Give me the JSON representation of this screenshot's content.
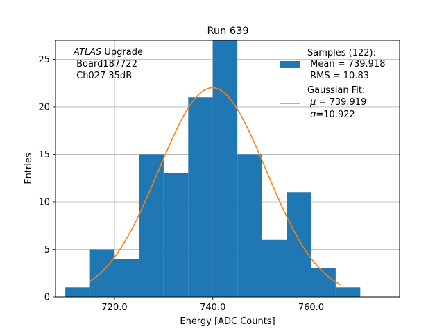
{
  "chart_data": {
    "type": "bar",
    "title": "Run 639",
    "xlabel": "Energy [ADC Counts]",
    "ylabel": "Entries",
    "xlim": [
      708,
      778
    ],
    "ylim": [
      0,
      27
    ],
    "xticks": [
      720,
      740,
      760
    ],
    "xtick_labels": [
      "720.0",
      "740.0",
      "760.0"
    ],
    "yticks": [
      0,
      5,
      10,
      15,
      20,
      25
    ],
    "grid": true,
    "bins": [
      {
        "x0": 710,
        "x1": 715,
        "count": 1
      },
      {
        "x0": 715,
        "x1": 720,
        "count": 5
      },
      {
        "x0": 720,
        "x1": 725,
        "count": 4
      },
      {
        "x0": 725,
        "x1": 730,
        "count": 15
      },
      {
        "x0": 730,
        "x1": 735,
        "count": 13
      },
      {
        "x0": 735,
        "x1": 740,
        "count": 21
      },
      {
        "x0": 740,
        "x1": 745,
        "count": 27
      },
      {
        "x0": 745,
        "x1": 750,
        "count": 15
      },
      {
        "x0": 750,
        "x1": 755,
        "count": 6
      },
      {
        "x0": 755,
        "x1": 760,
        "count": 11
      },
      {
        "x0": 760,
        "x1": 765,
        "count": 3
      },
      {
        "x0": 765,
        "x1": 770,
        "count": 1
      }
    ],
    "fit": {
      "mu": 739.919,
      "sigma": 10.922,
      "amplitude": 22,
      "x_start": 715,
      "x_end": 766
    },
    "colors": {
      "bars": "#1f77b4",
      "fit": "#ff7f0e"
    },
    "annotation": {
      "italic": "ATLAS",
      "line1_rest": " Upgrade",
      "line2": " Board187722",
      "line3": " Ch027 35dB"
    },
    "legend": {
      "position": "top-right",
      "samples": {
        "line1": "Samples (122):",
        "line2": " Mean = 739.918",
        "line3": " RMS = 10.83"
      },
      "fit": {
        "line1": "Gaussian Fit:",
        "line2_sym": "μ",
        "line2_rest": " = 739.919",
        "line3_sym": "σ",
        "line3_rest": "=10.922"
      }
    }
  }
}
